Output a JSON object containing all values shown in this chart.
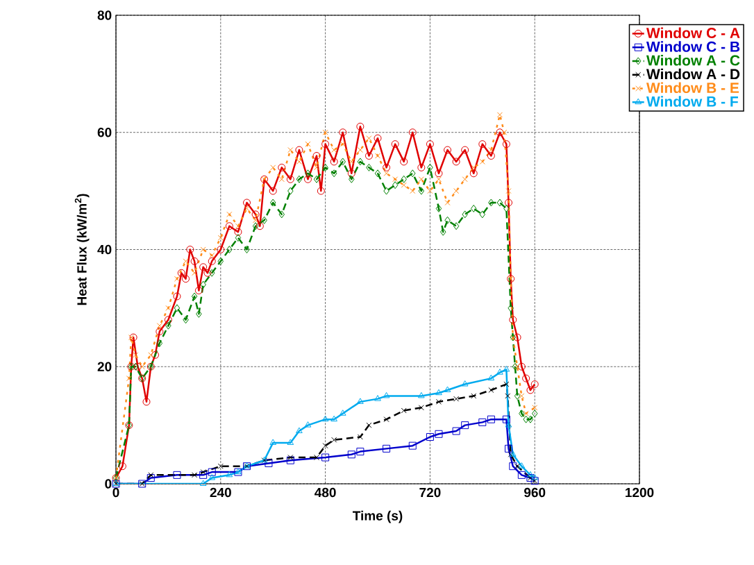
{
  "chart_data": {
    "type": "line",
    "xlabel": "Time (s)",
    "ylabel": "Heat Flux (kW/m$^{2}$)",
    "xlim": [
      0,
      1200
    ],
    "ylim": [
      0,
      80
    ],
    "xticks": [
      0,
      240,
      480,
      720,
      960,
      1200
    ],
    "yticks": [
      0,
      20,
      40,
      60,
      80
    ],
    "grid": true,
    "legend": "top right",
    "series": [
      {
        "name": "Window C - A",
        "color": "#e00000",
        "marker": "circle",
        "line_style": "solid",
        "x": [
          0,
          15,
          30,
          35,
          40,
          50,
          60,
          70,
          80,
          90,
          100,
          120,
          140,
          150,
          160,
          170,
          180,
          190,
          200,
          210,
          220,
          240,
          260,
          280,
          300,
          320,
          330,
          340,
          360,
          380,
          400,
          420,
          440,
          460,
          470,
          480,
          500,
          520,
          540,
          560,
          580,
          600,
          620,
          640,
          660,
          680,
          700,
          720,
          740,
          760,
          780,
          800,
          820,
          840,
          860,
          880,
          895,
          900,
          905,
          910,
          920,
          930,
          940,
          950,
          960
        ],
        "values": [
          1,
          3,
          10,
          20,
          25,
          20,
          18,
          14,
          20,
          22,
          26,
          28,
          32,
          36,
          35,
          40,
          38,
          33,
          37,
          36,
          38,
          40,
          44,
          43,
          48,
          46,
          44,
          52,
          50,
          54,
          52,
          57,
          52,
          56,
          50,
          58,
          55,
          60,
          53,
          61,
          56,
          59,
          54,
          58,
          55,
          60,
          54,
          58,
          53,
          57,
          55,
          57,
          53,
          58,
          56,
          60,
          58,
          48,
          35,
          28,
          25,
          20,
          18,
          16,
          17
        ]
      },
      {
        "name": "Window C - B",
        "color": "#0000cc",
        "marker": "square",
        "line_style": "solid",
        "x": [
          0,
          60,
          80,
          140,
          200,
          220,
          280,
          300,
          350,
          400,
          480,
          540,
          560,
          620,
          680,
          720,
          740,
          780,
          800,
          840,
          860,
          895,
          900,
          910,
          930,
          950,
          960
        ],
        "values": [
          0,
          0,
          1,
          1.5,
          1.5,
          2,
          2,
          3,
          3.5,
          4,
          4.5,
          5,
          5.5,
          6,
          6.5,
          8,
          8.5,
          9,
          10,
          10.5,
          11,
          11,
          6,
          3,
          1.5,
          1,
          0.5
        ]
      },
      {
        "name": "Window A - C",
        "color": "#008000",
        "marker": "diamond",
        "line_style": "dashed",
        "x": [
          0,
          30,
          35,
          45,
          60,
          80,
          100,
          120,
          140,
          160,
          180,
          190,
          200,
          220,
          240,
          260,
          280,
          300,
          320,
          340,
          360,
          380,
          400,
          420,
          440,
          460,
          480,
          500,
          520,
          540,
          560,
          580,
          600,
          620,
          640,
          660,
          680,
          700,
          720,
          740,
          750,
          760,
          780,
          800,
          820,
          840,
          860,
          880,
          895,
          905,
          910,
          915,
          920,
          930,
          940,
          950,
          960
        ],
        "values": [
          1,
          10,
          20,
          20,
          18,
          20,
          24,
          27,
          30,
          28,
          32,
          29,
          34,
          36,
          38,
          40,
          42,
          40,
          44,
          45,
          48,
          46,
          50,
          52,
          53,
          52,
          54,
          53,
          55,
          52,
          55,
          54,
          53,
          50,
          51,
          52,
          53,
          50,
          54,
          47,
          43,
          45,
          44,
          46,
          47,
          46,
          48,
          48,
          47,
          30,
          25,
          20,
          15,
          12,
          11,
          11,
          12
        ]
      },
      {
        "name": "Window A - D",
        "color": "#000000",
        "marker": "cross",
        "line_style": "dashed",
        "x": [
          0,
          60,
          80,
          180,
          200,
          240,
          300,
          340,
          400,
          460,
          480,
          500,
          560,
          580,
          620,
          660,
          700,
          740,
          780,
          820,
          860,
          895,
          898,
          905,
          920,
          950,
          960
        ],
        "values": [
          0,
          0,
          1.5,
          1.5,
          2,
          3,
          3,
          4,
          4.5,
          4.5,
          6.5,
          7.5,
          8,
          10,
          11,
          12.5,
          13,
          14,
          14.5,
          15,
          16,
          17,
          15,
          5,
          3,
          1,
          0.5
        ]
      },
      {
        "name": "Window B - E",
        "color": "#ff8c1a",
        "marker": "cross",
        "line_style": "dotted",
        "x": [
          0,
          30,
          35,
          45,
          60,
          80,
          100,
          120,
          140,
          160,
          180,
          200,
          220,
          240,
          260,
          280,
          300,
          320,
          340,
          360,
          380,
          400,
          420,
          440,
          460,
          480,
          500,
          520,
          540,
          560,
          580,
          600,
          620,
          640,
          660,
          680,
          700,
          720,
          740,
          760,
          780,
          800,
          820,
          840,
          860,
          880,
          890,
          900,
          905,
          910,
          920,
          930,
          940,
          960
        ],
        "values": [
          1,
          18,
          25,
          22,
          20,
          22,
          27,
          30,
          35,
          38,
          36,
          40,
          39,
          42,
          46,
          44,
          47,
          45,
          52,
          54,
          52,
          57,
          55,
          58,
          54,
          60,
          57,
          58,
          55,
          57,
          59,
          56,
          53,
          52,
          51,
          50,
          52,
          50,
          52,
          48,
          50,
          52,
          54,
          55,
          57,
          63,
          60,
          50,
          35,
          25,
          20,
          15,
          12,
          13
        ]
      },
      {
        "name": "Window B - F",
        "color": "#00aaee",
        "marker": "triangle",
        "line_style": "solid",
        "x": [
          0,
          200,
          220,
          260,
          280,
          300,
          340,
          360,
          400,
          420,
          440,
          480,
          500,
          520,
          560,
          600,
          620,
          700,
          740,
          760,
          800,
          860,
          880,
          895,
          900,
          910,
          930,
          950,
          960
        ],
        "values": [
          0,
          0,
          1,
          1.5,
          2,
          3,
          4,
          7,
          7,
          9,
          10,
          11,
          11,
          12,
          14,
          14.5,
          15,
          15,
          15.5,
          16,
          17,
          18,
          19,
          19.5,
          10,
          5,
          3,
          1.5,
          1
        ]
      }
    ]
  }
}
